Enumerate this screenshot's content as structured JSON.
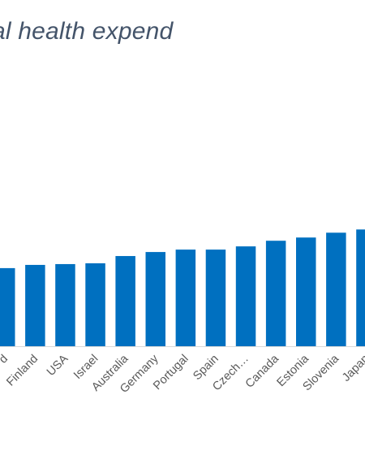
{
  "chart_data": {
    "type": "bar",
    "title": "enditures in total health expend",
    "categories": [
      "d",
      "Finland",
      "USA",
      "Israel",
      "Australia",
      "Germany",
      "Portugal",
      "Spain",
      "Czech…",
      "Canada",
      "Estonia",
      "Slovenia",
      "Japan"
    ],
    "values": [
      97,
      101,
      102,
      103,
      112,
      117,
      120,
      120,
      124,
      131,
      135,
      141,
      145
    ],
    "ylim": [
      0,
      430
    ],
    "grid": false,
    "legend": "none",
    "bar_color": "#0070c0"
  }
}
